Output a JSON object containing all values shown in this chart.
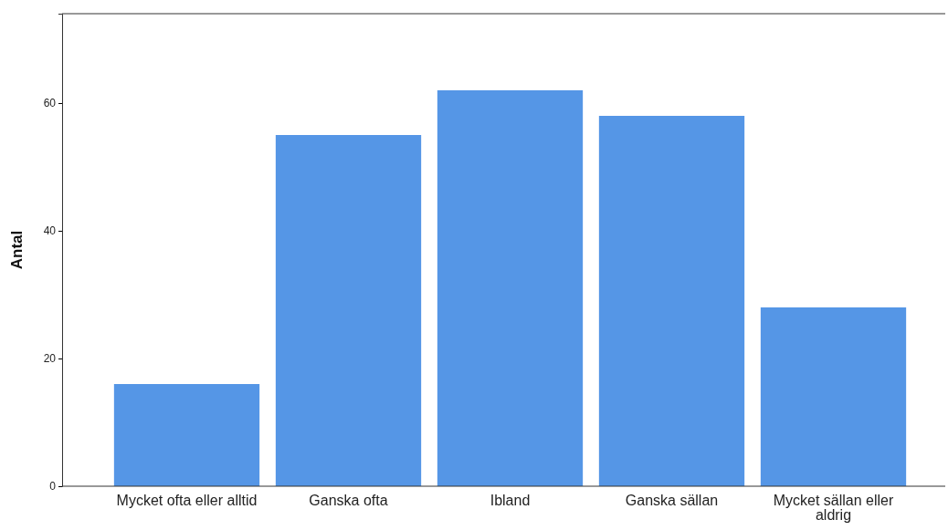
{
  "chart_data": {
    "type": "bar",
    "ylabel": "Antal",
    "categories": [
      "Mycket ofta eller alltid",
      "Ganska ofta",
      "Ibland",
      "Ganska sällan",
      "Mycket sällan eller aldrig"
    ],
    "values": [
      16,
      55,
      62,
      58,
      28
    ],
    "color": "#5596e6",
    "ylim": [
      0,
      74
    ],
    "yticks": [
      0,
      20,
      40,
      60
    ],
    "grid": false
  }
}
